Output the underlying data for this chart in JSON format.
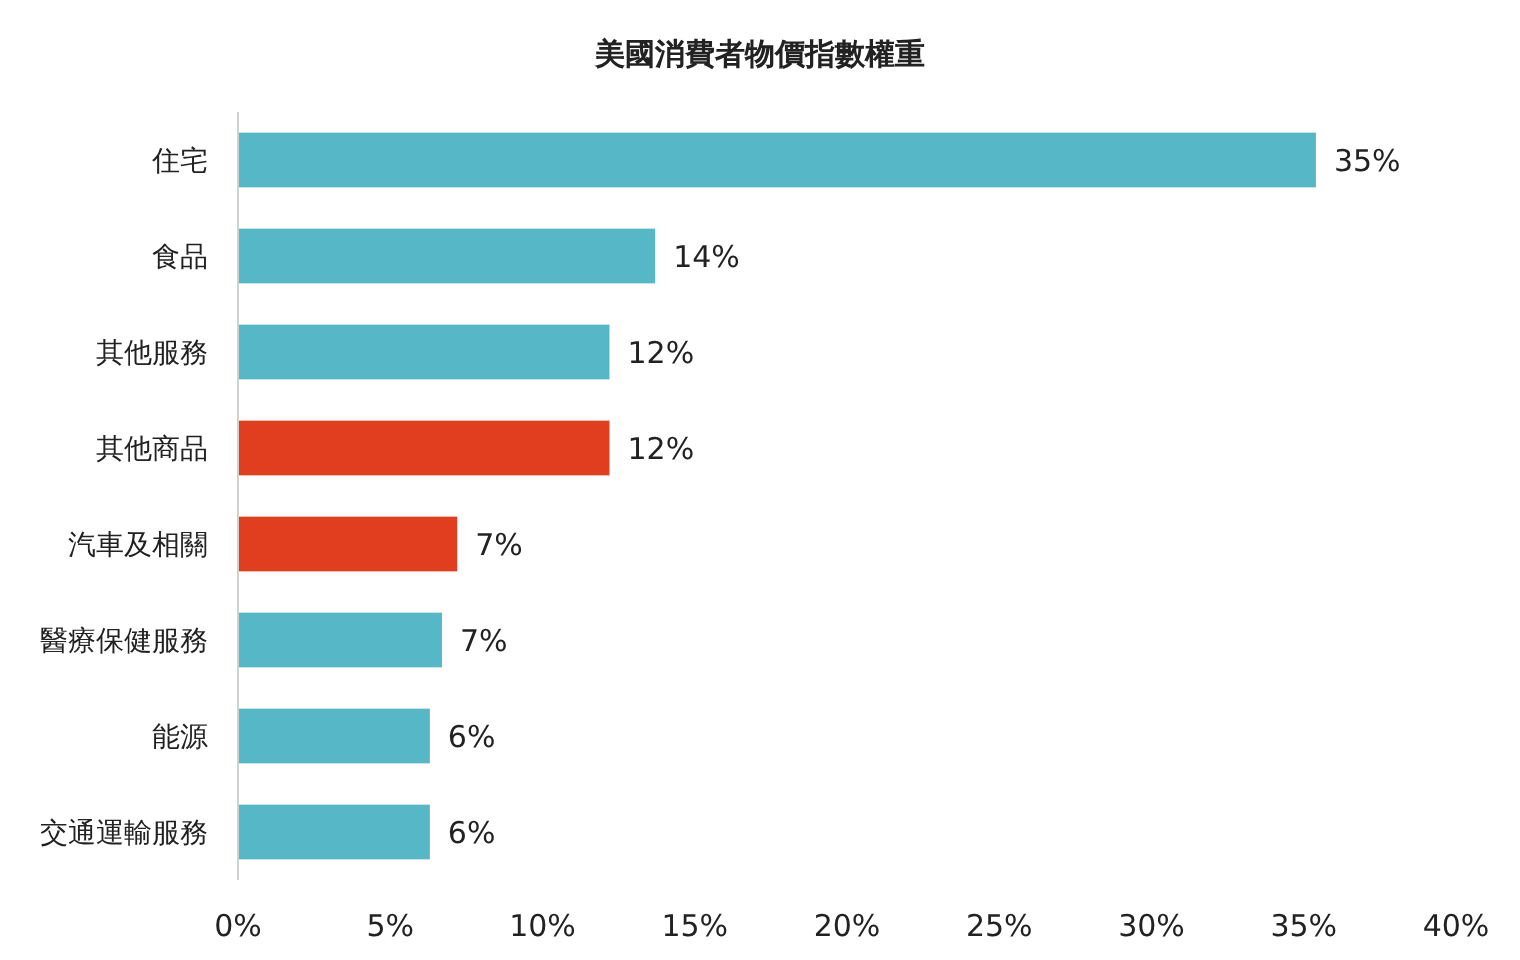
{
  "chart_data": {
    "type": "bar",
    "orientation": "horizontal",
    "title": "美國消費者物價指數權重",
    "categories": [
      "住宅",
      "食品",
      "其他服務",
      "其他商品",
      "汽車及相關",
      "醫療保健服務",
      "能源",
      "交通運輸服務"
    ],
    "values": [
      35.4,
      13.7,
      12.2,
      12.2,
      7.2,
      6.7,
      6.3,
      6.3
    ],
    "colors": [
      "#56b7c6",
      "#56b7c6",
      "#56b7c6",
      "#e03e1f",
      "#e03e1f",
      "#56b7c6",
      "#56b7c6",
      "#56b7c6"
    ],
    "value_labels": [
      "35%",
      "14%",
      "12%",
      "12%",
      "7%",
      "7%",
      "6%",
      "6%"
    ],
    "xlim": [
      0,
      40
    ],
    "xticks": [
      {
        "value": 0,
        "label": "0%"
      },
      {
        "value": 5,
        "label": "5%"
      },
      {
        "value": 10,
        "label": "10%"
      },
      {
        "value": 15,
        "label": "15%"
      },
      {
        "value": 20,
        "label": "20%"
      },
      {
        "value": 25,
        "label": "25%"
      },
      {
        "value": 30,
        "label": "30%"
      },
      {
        "value": 35,
        "label": "35%"
      },
      {
        "value": 40,
        "label": "40%"
      }
    ],
    "grid": false
  }
}
